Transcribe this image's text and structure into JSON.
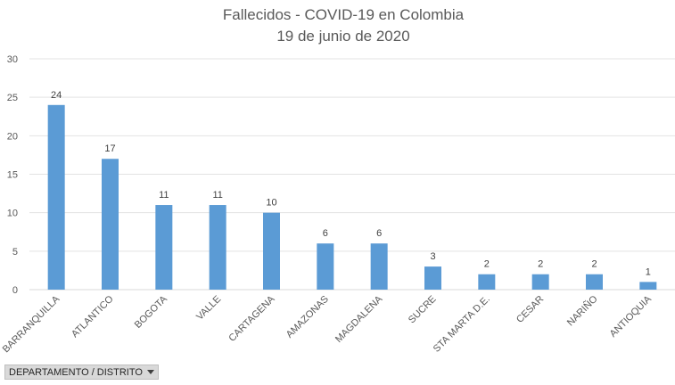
{
  "chart_data": {
    "type": "bar",
    "title": "Fallecidos - COVID-19 en Colombia",
    "subtitle": "19 de junio de 2020",
    "categories": [
      "BARRANQUILLA",
      "ATLANTICO",
      "BOGOTA",
      "VALLE",
      "CARTAGENA",
      "AMAZONAS",
      "MAGDALENA",
      "SUCRE",
      "STA MARTA D.E.",
      "CESAR",
      "NARIÑO",
      "ANTIOQUIA"
    ],
    "values": [
      24,
      17,
      11,
      11,
      10,
      6,
      6,
      3,
      2,
      2,
      2,
      1
    ],
    "ylim": [
      0,
      30
    ],
    "yticks": [
      0,
      5,
      10,
      15,
      20,
      25,
      30
    ],
    "grid": true,
    "bar_color": "#5b9bd5",
    "data_labels": true
  },
  "field_button": {
    "label": "DEPARTAMENTO / DISTRITO",
    "icon": "dropdown-arrow-icon"
  }
}
